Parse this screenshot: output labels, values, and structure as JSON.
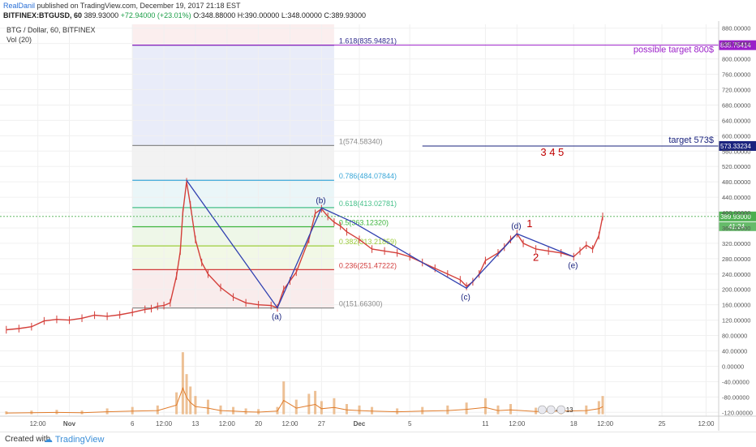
{
  "header": {
    "author": "RealDanil",
    "published": "published on TradingView.com, December 19, 2017 21:18 EST",
    "symbol": "BITFINEX:BTGUSD, 60",
    "last": "389.93000",
    "change": "+72.94000 (+23.01%)",
    "o_label": "O:",
    "o": "348.88000",
    "h_label": "H:",
    "h": "390.00000",
    "l_label": "L:",
    "l": "348.00000",
    "c_label": "C:",
    "c": "389.93000"
  },
  "footer": {
    "created_with": "Created with",
    "brand": "TradingView"
  },
  "colors": {
    "fib_1618": "#2e2a8c",
    "fib_1": "#8a8a8a",
    "fib_0786": "#3aa7d8",
    "fib_0618": "#46c08a",
    "fib_05": "#3cb43c",
    "fib_0382": "#9ccc3c",
    "fib_0236": "#d23c3c",
    "fib_0": "#8a8a8a",
    "wave": "#3040b0",
    "target_purple": "#9b1fc9",
    "target_blue": "#1a237e",
    "numbers_red": "#c00000",
    "candle": "#d43f3a",
    "volume": "#e8b07a",
    "vol_ma": "#e07b2a",
    "last_price": "#4caf50"
  },
  "chart_data": {
    "type": "line",
    "title": "BTG / Dollar, 60, BITFINEX",
    "subtitle": "Vol (20)",
    "xlabel": "",
    "ylabel": "",
    "ylim": [
      -130,
      890
    ],
    "y_ticks": [
      "880.00000",
      "840.00000",
      "800.00000",
      "760.00000",
      "720.00000",
      "680.00000",
      "640.00000",
      "600.00000",
      "560.00000",
      "520.00000",
      "480.00000",
      "440.00000",
      "400.00000",
      "360.00000",
      "320.00000",
      "280.00000",
      "240.00000",
      "200.00000",
      "160.00000",
      "120.00000",
      "80.00000",
      "40.00000",
      "0.00000",
      "-40.00000",
      "-80.00000",
      "-120.00000"
    ],
    "x_ticks": [
      {
        "label": "12:00",
        "x": -2.5
      },
      {
        "label": "Nov",
        "x": 0
      },
      {
        "label": "6",
        "x": 5
      },
      {
        "label": "12:00",
        "x": 7.5
      },
      {
        "label": "13",
        "x": 10
      },
      {
        "label": "12:00",
        "x": 12.5
      },
      {
        "label": "20",
        "x": 15
      },
      {
        "label": "12:00",
        "x": 17.5
      },
      {
        "label": "27",
        "x": 20
      },
      {
        "label": "Dec",
        "x": 23
      },
      {
        "label": "5",
        "x": 27
      },
      {
        "label": "11",
        "x": 33
      },
      {
        "label": "12:00",
        "x": 35.5
      },
      {
        "label": "18",
        "x": 40
      },
      {
        "label": "12:00",
        "x": 42.5
      },
      {
        "label": "25",
        "x": 47
      },
      {
        "label": "12:00",
        "x": 50.5
      }
    ],
    "price_series": [
      [
        -5,
        95
      ],
      [
        -4,
        98
      ],
      [
        -3,
        103
      ],
      [
        -2,
        118
      ],
      [
        -1,
        122
      ],
      [
        0,
        120
      ],
      [
        1,
        125
      ],
      [
        2,
        133
      ],
      [
        3,
        130
      ],
      [
        4,
        134
      ],
      [
        5,
        140
      ],
      [
        6,
        148
      ],
      [
        6.5,
        150
      ],
      [
        7,
        156
      ],
      [
        7.5,
        158
      ],
      [
        8,
        165
      ],
      [
        8.5,
        235
      ],
      [
        8.8,
        300
      ],
      [
        9,
        400
      ],
      [
        9.3,
        480
      ],
      [
        9.6,
        420
      ],
      [
        10,
        330
      ],
      [
        10.5,
        270
      ],
      [
        11,
        240
      ],
      [
        12,
        205
      ],
      [
        13,
        180
      ],
      [
        14,
        165
      ],
      [
        15,
        160
      ],
      [
        16,
        158
      ],
      [
        16.5,
        152
      ],
      [
        17,
        200
      ],
      [
        17.5,
        222
      ],
      [
        18,
        245
      ],
      [
        19,
        330
      ],
      [
        19.5,
        398
      ],
      [
        20,
        410
      ],
      [
        20.5,
        390
      ],
      [
        21,
        375
      ],
      [
        21.5,
        365
      ],
      [
        22,
        350
      ],
      [
        23,
        330
      ],
      [
        24,
        305
      ],
      [
        25,
        300
      ],
      [
        26,
        295
      ],
      [
        27,
        285
      ],
      [
        28,
        270
      ],
      [
        29,
        255
      ],
      [
        30,
        240
      ],
      [
        31,
        225
      ],
      [
        31.5,
        208
      ],
      [
        32,
        220
      ],
      [
        32.5,
        240
      ],
      [
        33,
        275
      ],
      [
        34,
        295
      ],
      [
        34.5,
        310
      ],
      [
        35,
        330
      ],
      [
        35.5,
        345
      ],
      [
        36,
        320
      ],
      [
        37,
        305
      ],
      [
        38,
        300
      ],
      [
        39,
        295
      ],
      [
        40,
        285
      ],
      [
        40.5,
        300
      ],
      [
        41,
        315
      ],
      [
        41.5,
        305
      ],
      [
        42,
        340
      ],
      [
        42.3,
        389.93
      ]
    ],
    "volume_series": [
      [
        -5,
        4
      ],
      [
        -3,
        5
      ],
      [
        -1,
        6
      ],
      [
        1,
        5
      ],
      [
        3,
        8
      ],
      [
        5,
        10
      ],
      [
        7,
        12
      ],
      [
        8.5,
        30
      ],
      [
        9,
        85
      ],
      [
        9.3,
        55
      ],
      [
        9.6,
        38
      ],
      [
        10,
        25
      ],
      [
        11,
        20
      ],
      [
        12,
        12
      ],
      [
        13,
        10
      ],
      [
        14,
        8
      ],
      [
        15,
        7
      ],
      [
        16.5,
        10
      ],
      [
        17,
        45
      ],
      [
        18,
        20
      ],
      [
        19,
        28
      ],
      [
        19.5,
        32
      ],
      [
        20,
        18
      ],
      [
        21,
        22
      ],
      [
        22,
        14
      ],
      [
        23,
        12
      ],
      [
        24,
        10
      ],
      [
        26,
        8
      ],
      [
        28,
        10
      ],
      [
        30,
        12
      ],
      [
        31.5,
        16
      ],
      [
        33,
        22
      ],
      [
        34,
        12
      ],
      [
        35,
        14
      ],
      [
        37,
        9
      ],
      [
        39,
        10
      ],
      [
        41,
        12
      ],
      [
        42,
        18
      ],
      [
        42.3,
        25
      ]
    ],
    "fib_levels": [
      {
        "ratio": "1.618",
        "price": 835.94821,
        "label": "1.618(835.94821)"
      },
      {
        "ratio": "1",
        "price": 574.5834,
        "label": "1(574.58340)"
      },
      {
        "ratio": "0.786",
        "price": 484.07844,
        "label": "0.786(484.07844)"
      },
      {
        "ratio": "0.618",
        "price": 413.02781,
        "label": "0.618(413.02781)"
      },
      {
        "ratio": "0.5",
        "price": 363.1232,
        "label": "0.5(363.12320)"
      },
      {
        "ratio": "0.382",
        "price": 313.21859,
        "label": "0.382(313.21859)"
      },
      {
        "ratio": "0.236",
        "price": 251.47222,
        "label": "0.236(251.47222)"
      },
      {
        "ratio": "0",
        "price": 151.663,
        "label": "0(151.66300)"
      }
    ],
    "fib_x_range": [
      5,
      21
    ],
    "wave_points": [
      {
        "label": "",
        "x": 9.3,
        "y": 484
      },
      {
        "label": "(a)",
        "x": 16.5,
        "y": 152
      },
      {
        "label": "(b)",
        "x": 20,
        "y": 412
      },
      {
        "label": "",
        "x": 22.5,
        "y": 375
      },
      {
        "label": "(c)",
        "x": 31.5,
        "y": 203
      },
      {
        "label": "(d)",
        "x": 35.5,
        "y": 345
      },
      {
        "label": "(e)",
        "x": 40,
        "y": 285
      }
    ],
    "targets": [
      {
        "label": "possible target 800$",
        "price": 835.75414,
        "price_label": "835.75414",
        "x_start": 5
      },
      {
        "label": "target 573$",
        "price": 573.33234,
        "price_label": "573.33234",
        "x_start": 28
      }
    ],
    "last_price": {
      "price": 389.93,
      "label": "389.93000",
      "countdown": "41:24"
    },
    "annotations": [
      {
        "text": "3 4 5",
        "x": 38.3,
        "y": 548
      },
      {
        "text": "1",
        "x": 36.5,
        "y": 362
      },
      {
        "text": "2",
        "x": 37,
        "y": 274
      }
    ],
    "events": [
      {
        "label": "5",
        "x": 37.5
      },
      {
        "label": "41",
        "x": 38.2
      },
      {
        "label": "13",
        "x": 39
      }
    ]
  }
}
